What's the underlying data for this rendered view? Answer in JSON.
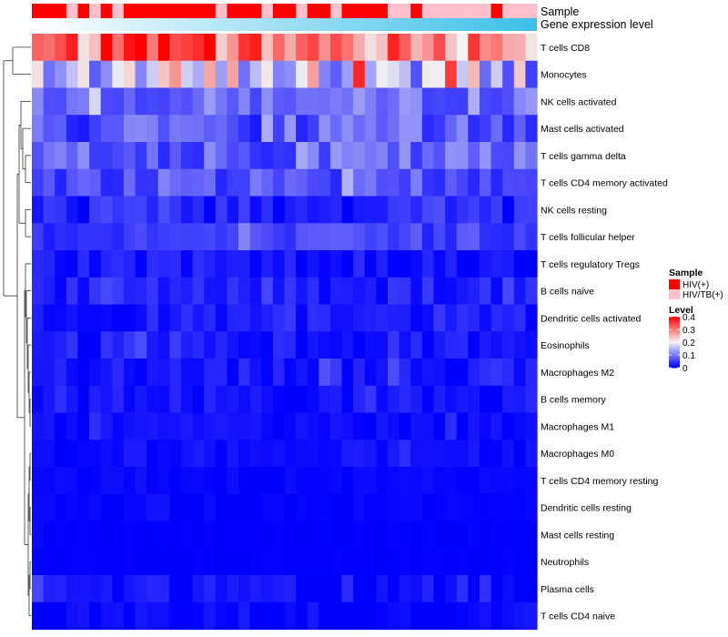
{
  "chart_data": {
    "type": "heatmap",
    "title": "",
    "annotation_tracks": [
      {
        "name": "Sample",
        "type": "categorical"
      },
      {
        "name": "Gene expression level",
        "type": "gradient"
      }
    ],
    "rows": [
      "T cells CD8",
      "Monocytes",
      "NK cells activated",
      "Mast cells activated",
      "T cells gamma delta",
      "T cells CD4 memory activated",
      "NK cells resting",
      "T cells follicular helper",
      "T cells regulatory  Tregs",
      "B cells naive",
      "Dendritic cells activated",
      "Eosinophils",
      "Macrophages M2",
      "B cells memory",
      "Macrophages M1",
      "Macrophages M0",
      "T cells CD4 memory resting",
      "Dendritic cells resting",
      "Mast cells resting",
      "Neutrophils",
      "Plasma cells",
      "T cells CD4 naive"
    ],
    "n_samples": 44,
    "sample_groups": [
      "HIV(+)",
      "HIV(+)",
      "HIV(+)",
      "HIV/TB(+)",
      "HIV(+)",
      "HIV/TB(+)",
      "HIV(+)",
      "HIV/TB(+)",
      "HIV(+)",
      "HIV(+)",
      "HIV(+)",
      "HIV(+)",
      "HIV(+)",
      "HIV(+)",
      "HIV(+)",
      "HIV(+)",
      "HIV/TB(+)",
      "HIV(+)",
      "HIV(+)",
      "HIV(+)",
      "HIV/TB(+)",
      "HIV(+)",
      "HIV(+)",
      "HIV/TB(+)",
      "HIV(+)",
      "HIV(+)",
      "HIV/TB(+)",
      "HIV(+)",
      "HIV(+)",
      "HIV(+)",
      "HIV(+)",
      "HIV/TB(+)",
      "HIV/TB(+)",
      "HIV(+)",
      "HIV/TB(+)",
      "HIV/TB(+)",
      "HIV/TB(+)",
      "HIV/TB(+)",
      "HIV/TB(+)",
      "HIV/TB(+)",
      "HIV(+)",
      "HIV/TB(+)",
      "HIV/TB(+)",
      "HIV/TB(+)"
    ],
    "row_profiles": [
      {
        "mean": 0.3,
        "spread": 0.1
      },
      {
        "mean": 0.17,
        "spread": 0.12
      },
      {
        "mean": 0.09,
        "spread": 0.04
      },
      {
        "mean": 0.07,
        "spread": 0.05
      },
      {
        "mean": 0.08,
        "spread": 0.05
      },
      {
        "mean": 0.07,
        "spread": 0.04
      },
      {
        "mean": 0.03,
        "spread": 0.04
      },
      {
        "mean": 0.05,
        "spread": 0.03
      },
      {
        "mean": 0.015,
        "spread": 0.025
      },
      {
        "mean": 0.03,
        "spread": 0.03
      },
      {
        "mean": 0.02,
        "spread": 0.02
      },
      {
        "mean": 0.02,
        "spread": 0.025
      },
      {
        "mean": 0.02,
        "spread": 0.025
      },
      {
        "mean": 0.015,
        "spread": 0.02
      },
      {
        "mean": 0.008,
        "spread": 0.015
      },
      {
        "mean": 0.008,
        "spread": 0.015
      },
      {
        "mean": 0.003,
        "spread": 0.008
      },
      {
        "mean": 0.003,
        "spread": 0.006
      },
      {
        "mean": 0.001,
        "spread": 0.003
      },
      {
        "mean": 0.001,
        "spread": 0.002
      },
      {
        "mean": 0.01,
        "spread": 0.03
      },
      {
        "mean": 0.005,
        "spread": 0.02
      }
    ],
    "color_scale": {
      "min": 0,
      "max": 0.4,
      "low": "#0000ff",
      "mid": "#f2f2f2",
      "high": "#ff0000",
      "midpoint": 0.2
    },
    "legend_sample": {
      "title": "Sample",
      "entries": [
        {
          "label": "HIV(+)",
          "color": "#ff0000"
        },
        {
          "label": "HIV/TB(+)",
          "color": "#ffc0cb"
        }
      ]
    },
    "legend_level": {
      "title": "Level",
      "ticks": [
        {
          "label": "0.4",
          "value": 0.4
        },
        {
          "label": "0.3",
          "value": 0.3
        },
        {
          "label": "0.2",
          "value": 0.2
        },
        {
          "label": "0.1",
          "value": 0.1
        },
        {
          "label": "0",
          "value": 0
        }
      ]
    },
    "gradient_track": {
      "start": "#ffffff",
      "end": "#3cbfe8"
    },
    "dendrogram": "row hierarchical clustering",
    "legend_position": "right"
  }
}
